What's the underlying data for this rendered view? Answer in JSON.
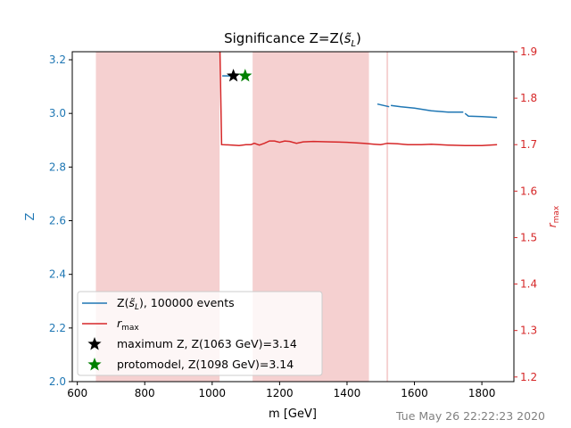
{
  "chart_data": {
    "type": "line",
    "title": "Significance Z=Z(s̃_L)",
    "title_parts": {
      "prefix": "Significance Z=Z(",
      "symbol": "s̃",
      "sub": "L",
      "suffix": ")"
    },
    "xlabel": "m [GeV]",
    "ylabel_left": "Z",
    "ylabel_right": "r_max",
    "xlim": [
      585,
      1895
    ],
    "ylim_left": [
      2.0,
      3.23
    ],
    "ylim_right": [
      1.19,
      1.9
    ],
    "x_ticks": [
      600,
      800,
      1000,
      1200,
      1400,
      1600,
      1800
    ],
    "y_left_ticks": [
      2.0,
      2.2,
      2.4,
      2.6,
      2.8,
      3.0,
      3.2
    ],
    "y_right_ticks": [
      1.2,
      1.3,
      1.4,
      1.5,
      1.6,
      1.7,
      1.8,
      1.9
    ],
    "grid": false,
    "legend_position": "lower-left",
    "colors": {
      "z_series": "#1f77b4",
      "rmax_series": "#d62728",
      "shade": "#f5d0d0",
      "max_star": "#000000",
      "proto_star": "#008000",
      "right_axis": "#d62728",
      "left_axis": "#1f77b4"
    },
    "shaded_regions": [
      [
        655,
        1022
      ],
      [
        1120,
        1465
      ],
      [
        1517,
        1522
      ]
    ],
    "series": [
      {
        "name": "Z(s̃_L), 100000 events",
        "legend": {
          "prefix": "Z(",
          "symbol": "s̃",
          "sub": "L",
          "suffix": "), 100000 events"
        },
        "axis": "left",
        "segments": [
          [
            [
              1030,
              3.14
            ],
            [
              1063,
              3.14
            ]
          ],
          [
            [
              1490,
              3.035
            ],
            [
              1525,
              3.025
            ]
          ],
          [
            [
              1530,
              3.03
            ],
            [
              1560,
              3.025
            ],
            [
              1600,
              3.02
            ],
            [
              1650,
              3.01
            ],
            [
              1700,
              3.005
            ],
            [
              1745,
              3.005
            ]
          ],
          [
            [
              1750,
              3.0
            ],
            [
              1760,
              2.99
            ],
            [
              1800,
              2.988
            ],
            [
              1845,
              2.985
            ]
          ]
        ]
      },
      {
        "name": "r_max",
        "legend": {
          "prefix": "r",
          "sub": "max"
        },
        "axis": "right",
        "points": [
          [
            655,
            1.95
          ],
          [
            1022,
            1.95
          ],
          [
            1028,
            1.7
          ],
          [
            1060,
            1.699
          ],
          [
            1080,
            1.698
          ],
          [
            1100,
            1.7
          ],
          [
            1115,
            1.7
          ],
          [
            1125,
            1.703
          ],
          [
            1140,
            1.699
          ],
          [
            1155,
            1.703
          ],
          [
            1170,
            1.708
          ],
          [
            1185,
            1.708
          ],
          [
            1200,
            1.705
          ],
          [
            1215,
            1.708
          ],
          [
            1230,
            1.707
          ],
          [
            1250,
            1.703
          ],
          [
            1270,
            1.706
          ],
          [
            1300,
            1.707
          ],
          [
            1350,
            1.706
          ],
          [
            1400,
            1.705
          ],
          [
            1450,
            1.703
          ],
          [
            1480,
            1.701
          ],
          [
            1500,
            1.7
          ],
          [
            1520,
            1.703
          ],
          [
            1550,
            1.702
          ],
          [
            1580,
            1.7
          ],
          [
            1620,
            1.7
          ],
          [
            1650,
            1.701
          ],
          [
            1700,
            1.699
          ],
          [
            1750,
            1.698
          ],
          [
            1800,
            1.698
          ],
          [
            1845,
            1.7
          ]
        ]
      }
    ],
    "markers": [
      {
        "name": "maximum Z, Z(1063 GeV)=3.14",
        "x": 1063,
        "y": 3.14,
        "shape": "star",
        "color": "#000000"
      },
      {
        "name": "protomodel, Z(1098 GeV)=3.14",
        "x": 1098,
        "y": 3.14,
        "shape": "star",
        "color": "#008000"
      }
    ]
  },
  "timestamp": "Tue May 26 22:22:23 2020"
}
